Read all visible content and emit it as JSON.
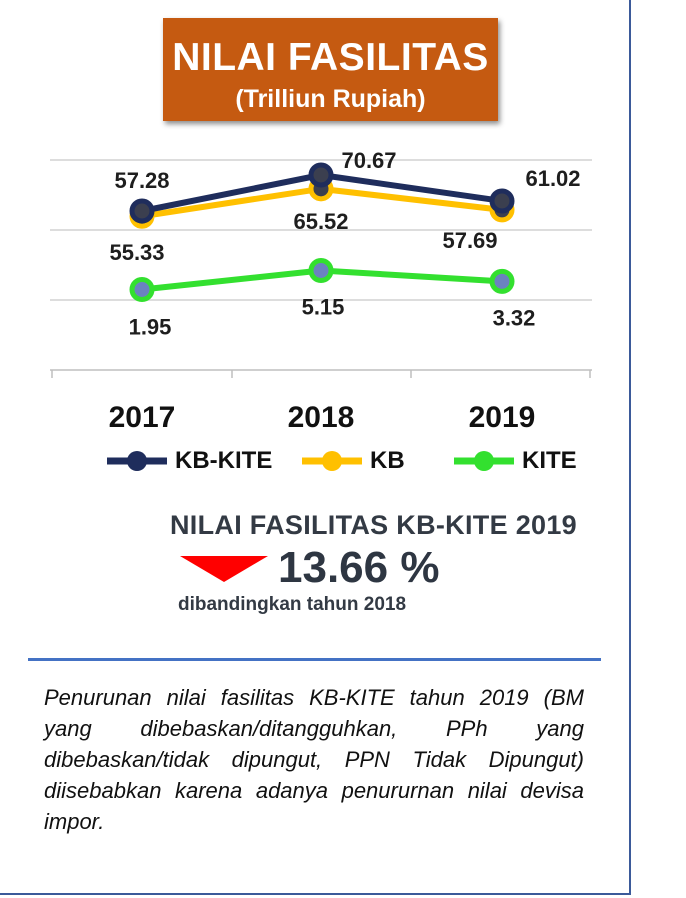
{
  "header": {
    "title": "NILAI FASILITAS",
    "subtitle": "(Trilliun Rupiah)"
  },
  "chart_data": {
    "type": "line",
    "categories": [
      "2017",
      "2018",
      "2019"
    ],
    "series": [
      {
        "name": "KB-KITE",
        "values": [
          57.28,
          70.67,
          61.02
        ],
        "color": "#1f2d5c"
      },
      {
        "name": "KB",
        "values": [
          55.33,
          65.52,
          57.69
        ],
        "color": "#ffc000"
      },
      {
        "name": "KITE",
        "values": [
          1.95,
          5.15,
          3.32
        ],
        "color": "#33e02f"
      }
    ],
    "data_labels": {
      "KB-KITE": [
        "57.28",
        "70.67",
        "61.02"
      ],
      "KB": [
        "55.33",
        "65.52",
        "57.69"
      ],
      "KITE": [
        "1.95",
        "5.15",
        "3.32"
      ]
    },
    "grid": true,
    "legend_position": "bottom"
  },
  "legend": [
    {
      "label": "KB-KITE",
      "color": "#1f2d5c"
    },
    {
      "label": "KB",
      "color": "#ffc000"
    },
    {
      "label": "KITE",
      "color": "#33e02f"
    }
  ],
  "stat": {
    "heading": "NILAI FASILITAS KB-KITE 2019",
    "value": "13.66 %",
    "caption": "dibandingkan tahun 2018",
    "direction": "down",
    "arrow_color": "#ff0000"
  },
  "note": "Penurunan nilai fasilitas KB-KITE tahun 2019 (BM yang dibebaskan/ditangguhkan, PPh yang dibebaskan/tidak dipungut, PPN Tidak Dipungut) diisebabkan karena adanya penururnan nilai devisa impor."
}
